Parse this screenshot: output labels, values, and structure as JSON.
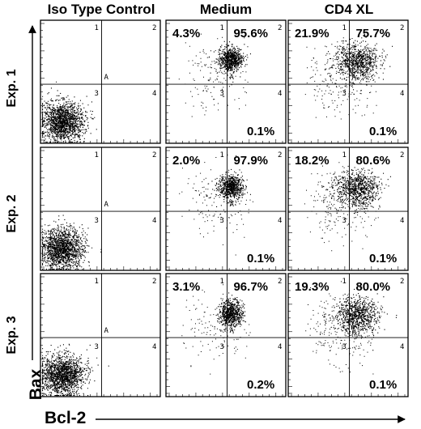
{
  "columns": [
    "Iso Type Control",
    "Medium",
    "CD4 XL"
  ],
  "rows": [
    "Exp. 1",
    "Exp. 2",
    "Exp. 3"
  ],
  "axes": {
    "x": "Bcl-2",
    "y": "Bax"
  },
  "quadrant_labels": [
    "1",
    "2",
    "3",
    "4"
  ],
  "marker_label": "A",
  "chart_data": {
    "type": "scatter",
    "xlabel": "Bcl-2",
    "ylabel": "Bax",
    "panels": [
      {
        "row": "Exp. 1",
        "column": "Iso Type Control",
        "q1": "",
        "q2": "",
        "q4": "",
        "cluster": "low"
      },
      {
        "row": "Exp. 1",
        "column": "Medium",
        "q1": "4.3%",
        "q2": "95.6%",
        "q4": "0.1%",
        "cluster": "high"
      },
      {
        "row": "Exp. 1",
        "column": "CD4 XL",
        "q1": "21.9%",
        "q2": "75.7%",
        "q4": "0.1%",
        "cluster": "high-spread"
      },
      {
        "row": "Exp. 2",
        "column": "Iso Type Control",
        "q1": "",
        "q2": "",
        "q4": "",
        "cluster": "low"
      },
      {
        "row": "Exp. 2",
        "column": "Medium",
        "q1": "2.0%",
        "q2": "97.9%",
        "q4": "0.1%",
        "cluster": "high"
      },
      {
        "row": "Exp. 2",
        "column": "CD4 XL",
        "q1": "18.2%",
        "q2": "80.6%",
        "q4": "0.1%",
        "cluster": "high-spread"
      },
      {
        "row": "Exp. 3",
        "column": "Iso Type Control",
        "q1": "",
        "q2": "",
        "q4": "",
        "cluster": "low"
      },
      {
        "row": "Exp. 3",
        "column": "Medium",
        "q1": "3.1%",
        "q2": "96.7%",
        "q4": "0.2%",
        "cluster": "high"
      },
      {
        "row": "Exp. 3",
        "column": "CD4 XL",
        "q1": "19.3%",
        "q2": "80.0%",
        "q4": "0.1%",
        "cluster": "high-spread"
      }
    ]
  }
}
